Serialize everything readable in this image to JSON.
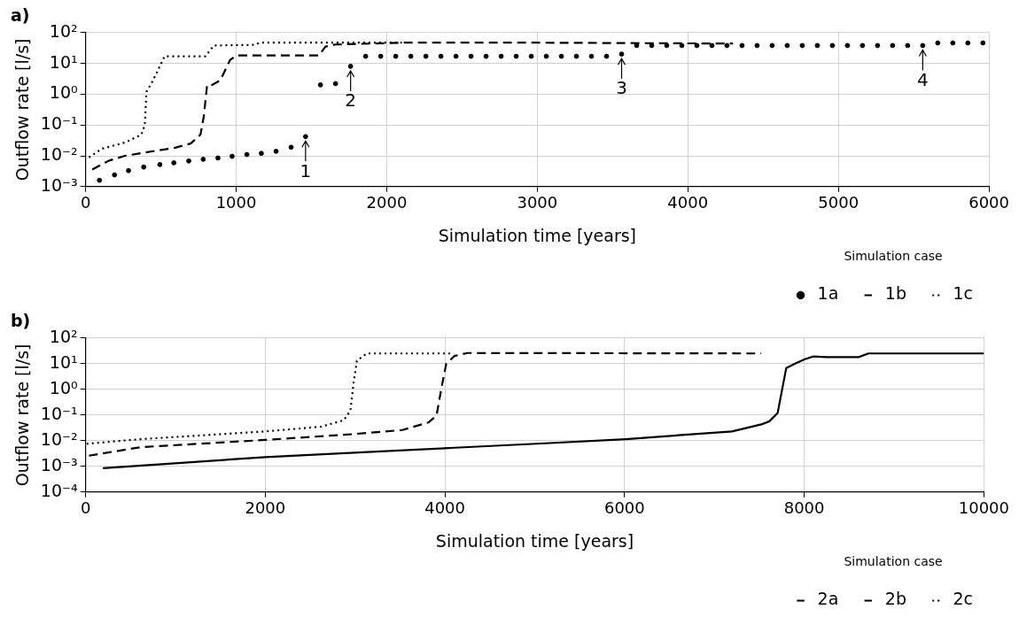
{
  "chart_data": [
    {
      "type": "line",
      "title": "a)",
      "xlabel": "Simulation time [years]",
      "ylabel": "Outflow rate [l/s]",
      "legend_title": "Simulation case",
      "legend": "bottom right",
      "grid": true,
      "log": "y",
      "marker": "none",
      "xlim": [
        0,
        6000
      ],
      "xticks": [
        0,
        1000,
        2000,
        3000,
        4000,
        5000,
        6000
      ],
      "ylim": [
        0.001,
        100
      ],
      "yticks": [
        {
          "value": 0.001,
          "label": "10⁻³"
        },
        {
          "value": 0.01,
          "label": "10⁻²"
        },
        {
          "value": 0.1,
          "label": "10⁻¹"
        },
        {
          "value": 1,
          "label": "10⁰"
        },
        {
          "value": 10,
          "label": "10¹"
        },
        {
          "value": 100,
          "label": "10²"
        }
      ],
      "series": [
        {
          "name": "1a",
          "type": "scatter",
          "marker": "circle",
          "color": "#000000",
          "x": [
            92,
            192,
            285,
            386,
            493,
            586,
            685,
            781,
            879,
            973,
            1071,
            1167,
            1265,
            1365,
            1461,
            1560,
            1660,
            1760,
            1860,
            1960,
            2060,
            2160,
            2260,
            2360,
            2460,
            2560,
            2660,
            2760,
            2860,
            2960,
            3060,
            3160,
            3260,
            3360,
            3460,
            3560,
            3660,
            3760,
            3860,
            3960,
            4060,
            4160,
            4260,
            4360,
            4460,
            4560,
            4660,
            4760,
            4860,
            4960,
            5060,
            5160,
            5260,
            5360,
            5460,
            5560,
            5660,
            5760,
            5860,
            5960
          ],
          "values": [
            0.0016,
            0.0024,
            0.0033,
            0.0043,
            0.0052,
            0.0059,
            0.0068,
            0.0077,
            0.0085,
            0.0096,
            0.011,
            0.012,
            0.014,
            0.019,
            0.042,
            2,
            2.2,
            8,
            17,
            17,
            17,
            17,
            17,
            17,
            17,
            17,
            17,
            17,
            17,
            17,
            17,
            17,
            17,
            17,
            17,
            20,
            38,
            38,
            38,
            38,
            38,
            38,
            38,
            38,
            38,
            38,
            38,
            38,
            38,
            38,
            38,
            38,
            38,
            38,
            38,
            38,
            46,
            46,
            46,
            46
          ]
        },
        {
          "name": "1b",
          "type": "line",
          "line_style": "dashed",
          "color": "#000000",
          "x": [
            44,
            153,
            262,
            480,
            589,
            698,
            763,
            785,
            807,
            840,
            894,
            960,
            1003,
            1549,
            1593,
            1658,
            2115,
            3000,
            4300
          ],
          "values": [
            0.0036,
            0.0069,
            0.01,
            0.015,
            0.018,
            0.025,
            0.049,
            0.19,
            2,
            2,
            2.8,
            13,
            18,
            18,
            35,
            41,
            47,
            47,
            44
          ]
        },
        {
          "name": "1c",
          "type": "line",
          "line_style": "dotted",
          "color": "#000000",
          "x": [
            22,
            109,
            262,
            371,
            393,
            404,
            436,
            480,
            524,
            796,
            851,
            1124,
            1156,
            2100
          ],
          "values": [
            0.0089,
            0.017,
            0.027,
            0.049,
            0.1,
            1.2,
            2.2,
            5.9,
            17,
            17,
            38,
            40,
            47,
            47
          ]
        }
      ],
      "annotations": [
        {
          "text": "1",
          "x": 1461,
          "y": 0.042
        },
        {
          "text": "2",
          "x": 1760,
          "y": 8
        },
        {
          "text": "3",
          "x": 3560,
          "y": 20
        },
        {
          "text": "4",
          "x": 5560,
          "y": 38
        }
      ]
    },
    {
      "type": "line",
      "title": "b)",
      "xlabel": "Simulation time [years]",
      "ylabel": "Outflow rate [l/s]",
      "legend_title": "Simulation case",
      "legend": "bottom right",
      "grid": true,
      "log": "y",
      "marker": "none",
      "xlim": [
        0,
        10000
      ],
      "xticks": [
        0,
        2000,
        4000,
        6000,
        8000,
        10000
      ],
      "ylim": [
        0.0001,
        100
      ],
      "yticks": [
        {
          "value": 0.0001,
          "label": "10⁻⁴"
        },
        {
          "value": 0.001,
          "label": "10⁻³"
        },
        {
          "value": 0.01,
          "label": "10⁻²"
        },
        {
          "value": 0.1,
          "label": "10⁻¹"
        },
        {
          "value": 1,
          "label": "10⁰"
        },
        {
          "value": 10,
          "label": "10¹"
        },
        {
          "value": 100,
          "label": "10²"
        }
      ],
      "series": [
        {
          "name": "2a",
          "type": "line",
          "line_style": "solid",
          "color": "#000000",
          "x": [
            193,
            2000,
            4000,
            5020,
            6013,
            7195,
            7522,
            7613,
            7704,
            7800,
            7898,
            8007,
            8098,
            8243,
            8606,
            8715,
            10000
          ],
          "values": [
            0.00085,
            0.0023,
            0.0051,
            0.0076,
            0.0115,
            0.023,
            0.043,
            0.057,
            0.12,
            6.8,
            10,
            15,
            19,
            18,
            18,
            25,
            25
          ]
        },
        {
          "name": "2b",
          "type": "line",
          "line_style": "dashed",
          "color": "#000000",
          "x": [
            37,
            615,
            2000,
            2980,
            3525,
            3815,
            3906,
            3960,
            4015,
            4106,
            4251,
            7522
          ],
          "values": [
            0.0026,
            0.0056,
            0.0107,
            0.018,
            0.026,
            0.051,
            0.093,
            1.07,
            10,
            20,
            26,
            25
          ]
        },
        {
          "name": "2c",
          "type": "line",
          "line_style": "dotted",
          "color": "#000000",
          "x": [
            11,
            615,
            2000,
            2621,
            2875,
            2948,
            2984,
            3020,
            3129,
            4100
          ],
          "values": [
            0.0076,
            0.0115,
            0.023,
            0.035,
            0.063,
            0.15,
            1.9,
            13,
            25,
            25
          ]
        }
      ]
    }
  ]
}
